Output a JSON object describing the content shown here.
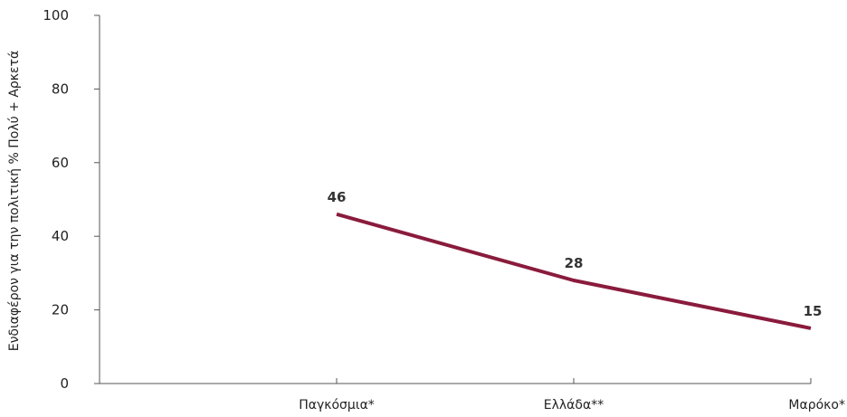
{
  "chart_data": {
    "type": "line",
    "title": "",
    "xlabel": "",
    "ylabel": "Ενδιαφέρον για την πολιτική % Πολύ + Αρκετά",
    "categories": [
      "Παγκόσμια*",
      "Ελλάδα**",
      "Μαρόκο*"
    ],
    "series": [
      {
        "values": [
          46,
          28,
          15
        ],
        "color": "#8a1b3c"
      }
    ],
    "ylim": [
      0,
      100
    ],
    "yticks": [
      0,
      20,
      40,
      60,
      80,
      100
    ],
    "grid": false,
    "legend": "none"
  }
}
